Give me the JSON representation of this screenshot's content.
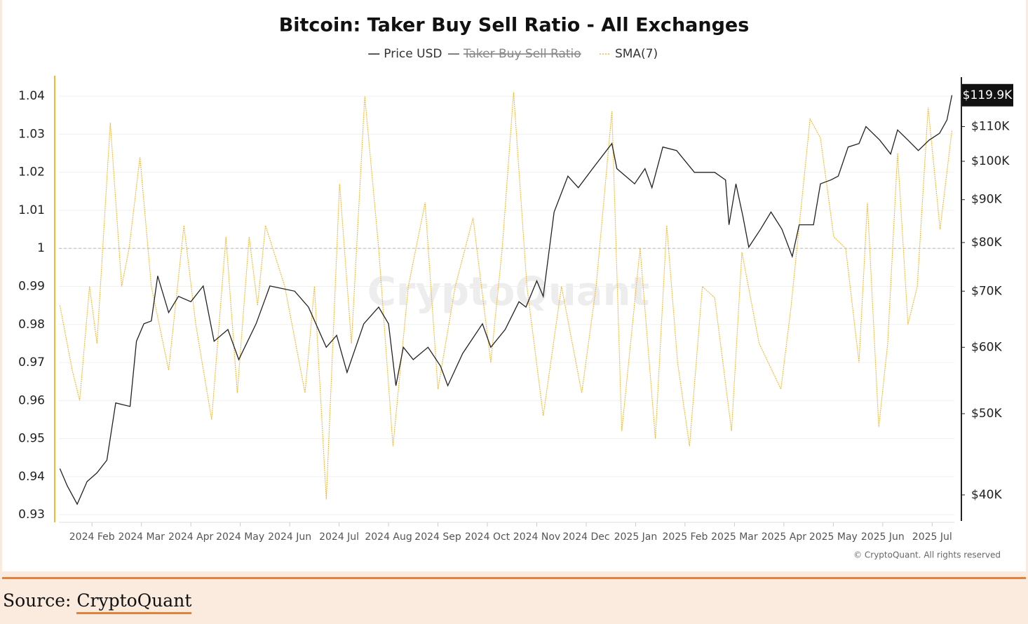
{
  "chart_data": {
    "type": "line",
    "title": "Bitcoin: Taker Buy Sell Ratio - All Exchanges",
    "watermark": "CryptoQuant",
    "credit": "© CryptoQuant. All rights reserved",
    "xlim": [
      0.33,
      18.45
    ],
    "xticks": [
      {
        "value": 1,
        "label": "2024 Feb"
      },
      {
        "value": 2,
        "label": "2024 Mar"
      },
      {
        "value": 3,
        "label": "2024 Apr"
      },
      {
        "value": 4,
        "label": "2024 May"
      },
      {
        "value": 5,
        "label": "2024 Jun"
      },
      {
        "value": 6,
        "label": "2024 Jul"
      },
      {
        "value": 7,
        "label": "2024 Aug"
      },
      {
        "value": 8,
        "label": "2024 Sep"
      },
      {
        "value": 9,
        "label": "2024 Oct"
      },
      {
        "value": 10,
        "label": "2024 Nov"
      },
      {
        "value": 11,
        "label": "2024 Dec"
      },
      {
        "value": 12,
        "label": "2025 Jan"
      },
      {
        "value": 13,
        "label": "2025 Feb"
      },
      {
        "value": 14,
        "label": "2025 Mar"
      },
      {
        "value": 15,
        "label": "2025 Apr"
      },
      {
        "value": 16,
        "label": "2025 May"
      },
      {
        "value": 17,
        "label": "2025 Jun"
      },
      {
        "value": 18,
        "label": "2025 Jul"
      }
    ],
    "ylim": [
      0.928,
      1.045
    ],
    "yticks": [
      0.93,
      0.94,
      0.95,
      0.96,
      0.97,
      0.98,
      0.99,
      1,
      1.01,
      1.02,
      1.03,
      1.04
    ],
    "grid": true,
    "hline": 1,
    "y2scale": "log",
    "y2lim": [
      37100,
      126000
    ],
    "y2ticks": [
      {
        "value": 40000,
        "label": "$40K"
      },
      {
        "value": 50000,
        "label": "$50K"
      },
      {
        "value": 60000,
        "label": "$60K"
      },
      {
        "value": 70000,
        "label": "$70K"
      },
      {
        "value": 80000,
        "label": "$80K"
      },
      {
        "value": 90000,
        "label": "$90K"
      },
      {
        "value": 100000,
        "label": "$100K"
      },
      {
        "value": 110000,
        "label": "$110K"
      }
    ],
    "series": [
      {
        "name": "Price USD",
        "color": "#222222",
        "axis": "y2",
        "x": [
          0.35,
          0.5,
          0.7,
          0.9,
          1.1,
          1.3,
          1.48,
          1.77,
          1.9,
          2.05,
          2.2,
          2.33,
          2.55,
          2.75,
          3.0,
          3.25,
          3.47,
          3.75,
          3.97,
          4.32,
          4.6,
          5.1,
          5.38,
          5.74,
          5.95,
          6.16,
          6.5,
          6.8,
          7.0,
          7.15,
          7.3,
          7.5,
          7.8,
          8.05,
          8.2,
          8.5,
          8.9,
          9.07,
          9.36,
          9.64,
          9.78,
          10.0,
          10.13,
          10.35,
          10.63,
          10.84,
          11.13,
          11.52,
          11.62,
          11.98,
          12.19,
          12.33,
          12.55,
          12.83,
          13.19,
          13.6,
          13.82,
          13.89,
          14.03,
          14.17,
          14.29,
          14.53,
          14.74,
          14.96,
          15.17,
          15.31,
          15.6,
          15.74,
          15.95,
          16.1,
          16.3,
          16.52,
          16.66,
          16.94,
          17.16,
          17.3,
          17.51,
          17.72,
          17.94,
          18.15,
          18.3,
          18.4
        ],
        "values": [
          43000,
          41000,
          39000,
          41500,
          42500,
          44000,
          51500,
          51000,
          61000,
          64000,
          64500,
          73000,
          66000,
          69000,
          68000,
          71000,
          61000,
          63000,
          58000,
          64000,
          71000,
          70000,
          67000,
          60000,
          62000,
          56000,
          64000,
          67000,
          64000,
          54000,
          60000,
          58000,
          60000,
          57000,
          54000,
          59000,
          64000,
          60000,
          63000,
          68000,
          67000,
          72000,
          69000,
          87000,
          96000,
          93000,
          98000,
          105000,
          98000,
          94000,
          98000,
          93000,
          104000,
          103000,
          97000,
          97000,
          95000,
          84000,
          94000,
          86000,
          79000,
          83000,
          87000,
          83000,
          77000,
          84000,
          84000,
          94000,
          95000,
          96000,
          104000,
          105000,
          110000,
          106000,
          102000,
          109000,
          106000,
          103000,
          106000,
          108000,
          112000,
          119900
        ],
        "value_labels": [
          null,
          null,
          null,
          null,
          null,
          null,
          null,
          null,
          null,
          null,
          null,
          null,
          null,
          null,
          null,
          null,
          null,
          null,
          null,
          null,
          null,
          null,
          null,
          null,
          null,
          null,
          null,
          null,
          null,
          null,
          null,
          null,
          null,
          null,
          null,
          null,
          null,
          null,
          null,
          null,
          null,
          null,
          null,
          null,
          null,
          null,
          null,
          null,
          null,
          null,
          null,
          null,
          null,
          null,
          null,
          null,
          null,
          null,
          null,
          null,
          null,
          null,
          null,
          null,
          null,
          null,
          null,
          null,
          null,
          null,
          null,
          null,
          null,
          null,
          null,
          null,
          null,
          null,
          null,
          null,
          null,
          "$119.9K"
        ]
      },
      {
        "name": "Taker Buy Sell Ratio",
        "color": "#555555",
        "hidden": true
      },
      {
        "name": "SMA(7)",
        "color": "#f5b82e",
        "x": [
          0.35,
          0.6,
          0.75,
          0.95,
          1.1,
          1.37,
          1.6,
          1.75,
          1.97,
          2.2,
          2.55,
          2.86,
          3.1,
          3.42,
          3.71,
          3.94,
          4.18,
          4.35,
          4.51,
          4.9,
          5.31,
          5.5,
          5.74,
          6.01,
          6.25,
          6.52,
          6.8,
          7.09,
          7.4,
          7.74,
          8.0,
          8.35,
          8.71,
          9.07,
          9.3,
          9.53,
          9.8,
          10.13,
          10.5,
          10.91,
          11.2,
          11.52,
          11.72,
          12.09,
          12.4,
          12.63,
          12.85,
          13.09,
          13.35,
          13.6,
          13.94,
          14.15,
          14.5,
          14.94,
          15.14,
          15.53,
          15.74,
          16.01,
          16.25,
          16.52,
          16.69,
          16.92,
          17.1,
          17.3,
          17.51,
          17.7,
          17.92,
          18.16,
          18.4
        ],
        "values": [
          0.985,
          0.968,
          0.96,
          0.99,
          0.975,
          1.033,
          0.99,
          1.0,
          1.024,
          0.99,
          0.968,
          1.006,
          0.98,
          0.955,
          1.003,
          0.962,
          1.003,
          0.985,
          1.006,
          0.99,
          0.962,
          0.99,
          0.934,
          1.017,
          0.975,
          1.04,
          1.0,
          0.948,
          0.99,
          1.012,
          0.963,
          0.99,
          1.008,
          0.97,
          1.0,
          1.041,
          0.99,
          0.956,
          0.99,
          0.962,
          0.99,
          1.036,
          0.952,
          1.0,
          0.95,
          1.006,
          0.97,
          0.948,
          0.99,
          0.987,
          0.952,
          0.999,
          0.975,
          0.963,
          0.984,
          1.034,
          1.029,
          1.003,
          1.0,
          0.97,
          1.012,
          0.953,
          0.975,
          1.025,
          0.98,
          0.99,
          1.037,
          1.005,
          1.031
        ]
      }
    ]
  },
  "footer": {
    "source_label": "Source:",
    "source_name": "CryptoQuant"
  }
}
